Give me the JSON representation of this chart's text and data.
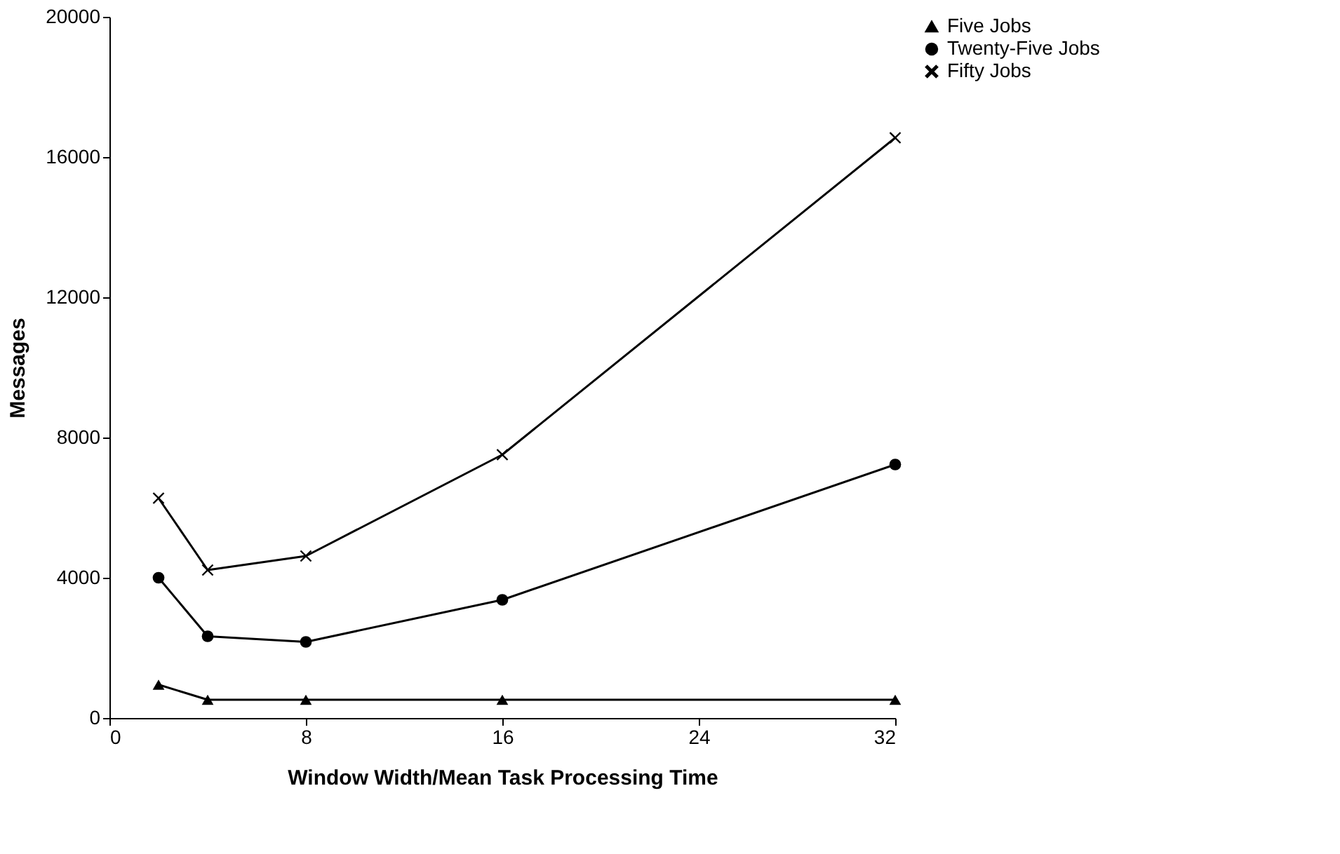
{
  "chart_data": {
    "type": "line",
    "xlabel": "Window Width/Mean Task Processing Time",
    "ylabel": "Messages",
    "x": [
      2,
      4,
      8,
      16,
      32
    ],
    "series": [
      {
        "name": "Five Jobs",
        "color": "#000000",
        "marker": "triangle",
        "values": [
          950,
          520,
          520,
          520,
          520
        ]
      },
      {
        "name": "Twenty-Five Jobs",
        "color": "#000000",
        "marker": "circle",
        "values": [
          4000,
          2330,
          2170,
          3370,
          7230
        ]
      },
      {
        "name": "Fifty Jobs",
        "color": "#000000",
        "marker": "cross",
        "values": [
          6270,
          4220,
          4620,
          7510,
          16550
        ]
      }
    ],
    "xlim": [
      0,
      32
    ],
    "xticks": [
      0,
      8,
      16,
      24,
      32
    ],
    "ylim": [
      0,
      20000
    ],
    "yticks": [
      0,
      4000,
      8000,
      12000,
      16000,
      20000
    ],
    "grid": false,
    "legend": "right",
    "line_style": "solid"
  }
}
